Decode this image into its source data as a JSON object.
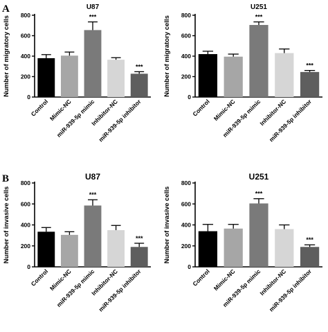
{
  "panel_labels": [
    "A",
    "B"
  ],
  "chart_data": [
    {
      "type": "bar",
      "panel": "A",
      "title": "U87",
      "ylabel": "Number of migratory cells",
      "xlabel": "",
      "categories": [
        "Control",
        "Mimic-NC",
        "miR-939-5p mimic",
        "Inhibitor-NC",
        "miR-939-5p inhibitor"
      ],
      "values": [
        380,
        405,
        655,
        365,
        228
      ],
      "errors": [
        35,
        35,
        80,
        20,
        20
      ],
      "significance": [
        "",
        "",
        "***",
        "",
        "***"
      ],
      "colors": [
        "#000000",
        "#a6a6a6",
        "#7a7a7a",
        "#d6d6d6",
        "#5e5e5e"
      ],
      "ylim": [
        0,
        800
      ],
      "yticks": [
        0,
        200,
        400,
        600,
        800
      ],
      "grid": false
    },
    {
      "type": "bar",
      "panel": "A",
      "title": "U251",
      "ylabel": "Number of migratory cells",
      "xlabel": "",
      "categories": [
        "Control",
        "Mimic-NC",
        "miR-939-5p mimic",
        "Inhibitor-NC",
        "miR-939-5p inhibitor"
      ],
      "values": [
        420,
        395,
        705,
        430,
        245
      ],
      "errors": [
        28,
        25,
        30,
        40,
        15
      ],
      "significance": [
        "",
        "",
        "***",
        "",
        "***"
      ],
      "colors": [
        "#000000",
        "#a6a6a6",
        "#7a7a7a",
        "#d6d6d6",
        "#5e5e5e"
      ],
      "ylim": [
        0,
        800
      ],
      "yticks": [
        0,
        200,
        400,
        600,
        800
      ],
      "grid": false
    },
    {
      "type": "bar",
      "panel": "B",
      "title": "U87",
      "ylabel": "Number of invasive cells",
      "xlabel": "",
      "categories": [
        "Control",
        "Mimic-NC",
        "miR-939-5p mimic",
        "Inhibitor-NC",
        "miR-939-5p inhibitor"
      ],
      "values": [
        335,
        305,
        585,
        350,
        190
      ],
      "errors": [
        40,
        30,
        55,
        45,
        35
      ],
      "significance": [
        "",
        "",
        "***",
        "",
        "***"
      ],
      "colors": [
        "#000000",
        "#a6a6a6",
        "#7a7a7a",
        "#d6d6d6",
        "#5e5e5e"
      ],
      "ylim": [
        0,
        800
      ],
      "yticks": [
        0,
        200,
        400,
        600,
        800
      ],
      "grid": false
    },
    {
      "type": "bar",
      "panel": "B",
      "title": "U251",
      "ylabel": "Number of invasive cells",
      "xlabel": "",
      "categories": [
        "Control",
        "Mimic-NC",
        "miR-939-5p mimic",
        "Inhibitor-NC",
        "miR-939-5p inhibitor"
      ],
      "values": [
        340,
        365,
        605,
        360,
        190
      ],
      "errors": [
        65,
        40,
        45,
        40,
        20
      ],
      "significance": [
        "",
        "",
        "***",
        "",
        "***"
      ],
      "colors": [
        "#000000",
        "#a6a6a6",
        "#7a7a7a",
        "#d6d6d6",
        "#5e5e5e"
      ],
      "ylim": [
        0,
        800
      ],
      "yticks": [
        0,
        200,
        400,
        600,
        800
      ],
      "grid": false
    }
  ]
}
